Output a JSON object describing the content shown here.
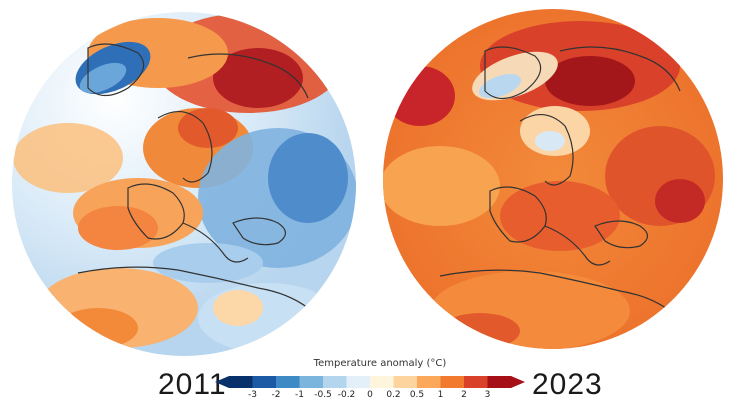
{
  "maps": [
    {
      "year": "2011",
      "description_colors": "mixed cold blue and warm orange anomalies"
    },
    {
      "year": "2023",
      "description_colors": "predominantly warm orange and red anomalies"
    }
  ],
  "legend": {
    "title": "Temperature anomaly (°C)",
    "ticks": [
      "-3",
      "-2",
      "-1",
      "-0.5",
      "-0.2",
      "0",
      "0.2",
      "0.5",
      "1",
      "2",
      "3"
    ],
    "colors": [
      "#08306b",
      "#1c5aa6",
      "#3e8ac4",
      "#7bb4dc",
      "#b3d6ee",
      "#e3eff9",
      "#fff5dd",
      "#fdd49e",
      "#fca85a",
      "#f27a2e",
      "#d9412a",
      "#a50f15"
    ]
  },
  "palette": {
    "ocean_blue": "#cfe3f4",
    "cold": "#5a9bd5",
    "warm": "#f28a3a",
    "hot": "#c8252a"
  }
}
